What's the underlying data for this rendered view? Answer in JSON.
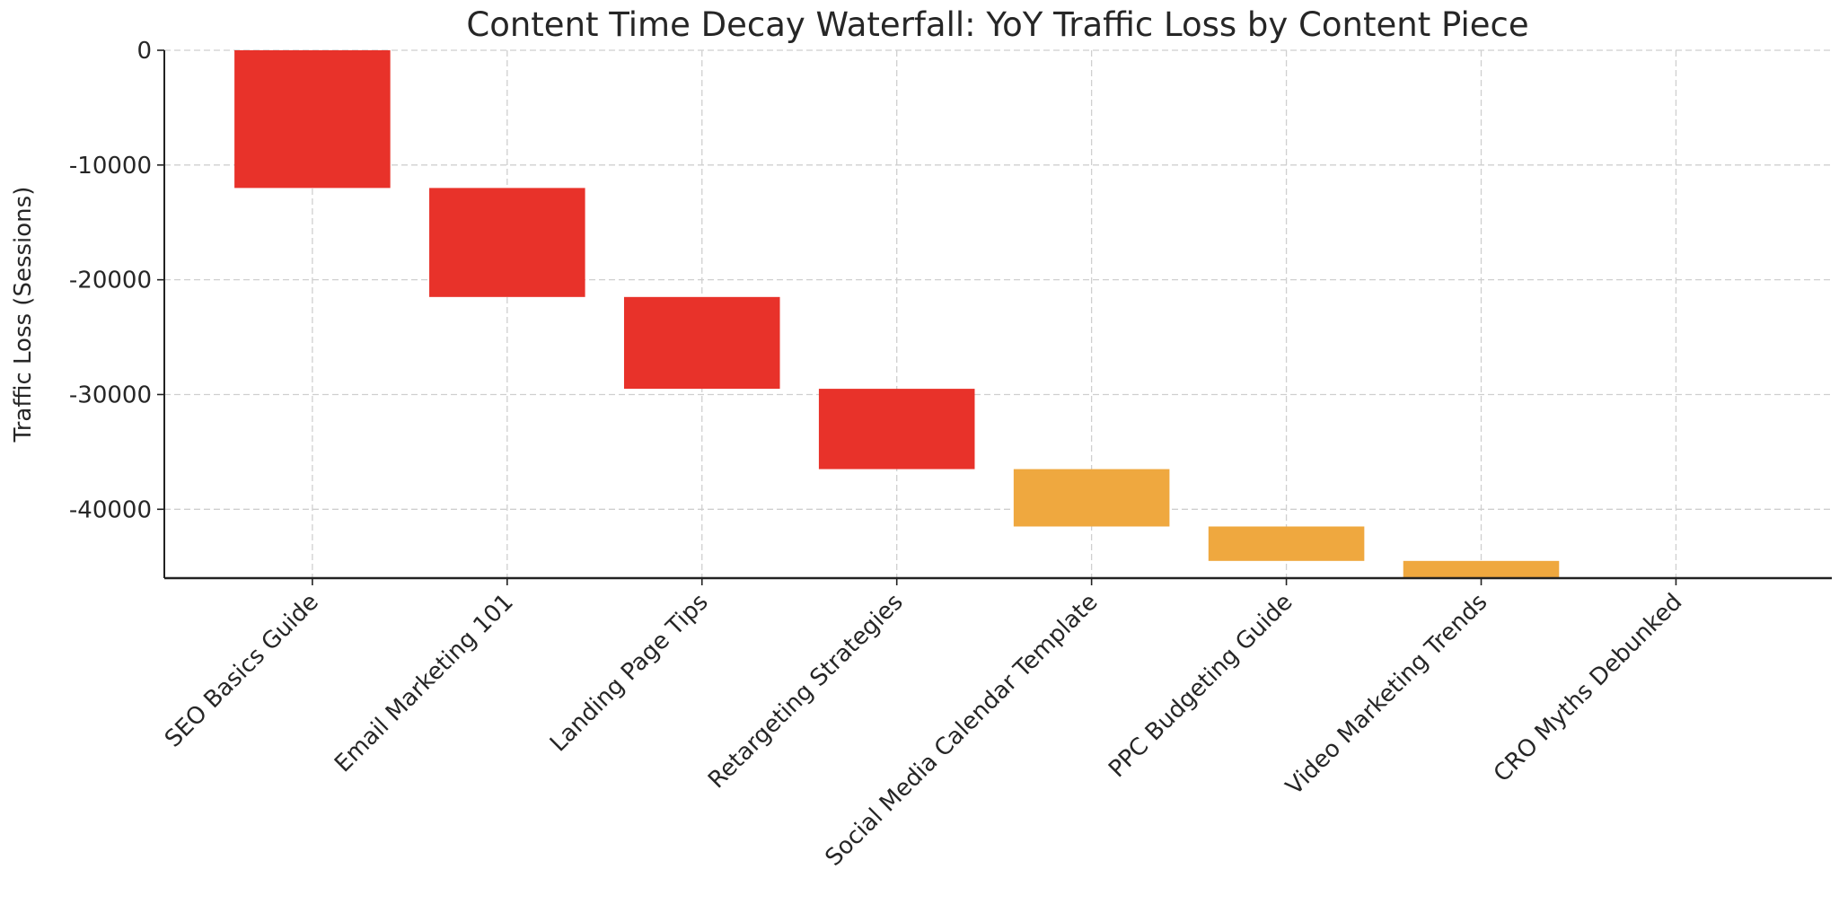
{
  "chart_data": {
    "type": "bar",
    "subtype": "waterfall",
    "title": "Content Time Decay Waterfall: YoY Traffic Loss by Content Piece",
    "xlabel": "",
    "ylabel": "Traffic Loss (Sessions)",
    "categories": [
      "SEO Basics Guide",
      "Email Marketing 101",
      "Landing Page Tips",
      "Retargeting Strategies",
      "Social Media Calendar Template",
      "PPC Budgeting Guide",
      "Video Marketing Trends",
      "CRO Myths Debunked"
    ],
    "values": [
      -12000,
      -9500,
      -8000,
      -7000,
      -5000,
      -3000,
      -1500,
      0
    ],
    "colors": [
      "#E8322A",
      "#E8322A",
      "#E8322A",
      "#E8322A",
      "#EFA83F",
      "#EFA83F",
      "#EFA83F",
      "#EFA83F"
    ],
    "ylim": [
      -46000,
      0
    ],
    "yticks": [
      0,
      -10000,
      -20000,
      -30000,
      -40000
    ],
    "grid": true
  }
}
